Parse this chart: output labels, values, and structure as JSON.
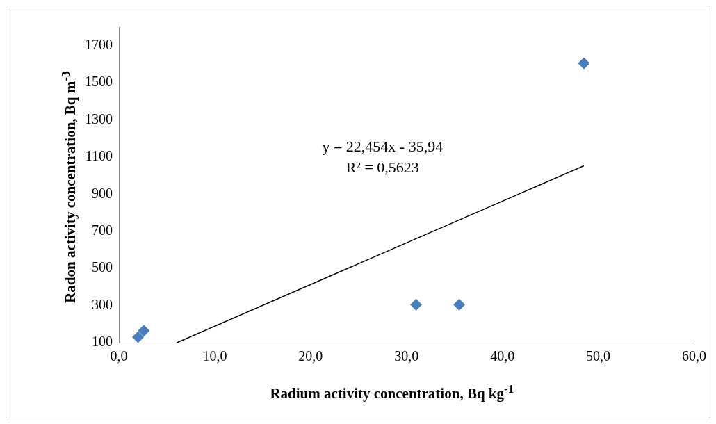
{
  "chart_data": {
    "type": "scatter",
    "xlabel": "Radium activity concentration, Bq kg$^{-1}$",
    "ylabel": "Radon activity concentration, Bq m$^{-3}$",
    "series": [
      {
        "color": "#4a7ebb",
        "marker": "diamond",
        "x": [
          2.0,
          2.6,
          31.0,
          35.5,
          48.5
        ],
        "values": [
          130,
          165,
          305,
          305,
          1605
        ]
      },
      {
        "type": "line",
        "color": "#000000",
        "marker": "none",
        "line_style": "solid",
        "x": [
          6.05,
          48.5
        ],
        "values": [
          100,
          1053
        ]
      }
    ],
    "annotations": [
      "y = 22,454x - 35,94",
      "R² = 0,5623"
    ],
    "xlim": [
      0,
      60
    ],
    "xticks": [
      {
        "value": 0,
        "label": "0,0"
      },
      {
        "value": 10,
        "label": "10,0"
      },
      {
        "value": 20,
        "label": "20,0"
      },
      {
        "value": 30,
        "label": "30,0"
      },
      {
        "value": 40,
        "label": "40,0"
      },
      {
        "value": 50,
        "label": "50,0"
      },
      {
        "value": 60,
        "label": "60,0"
      }
    ],
    "ylim": [
      100,
      1800
    ],
    "yticks": [
      100,
      300,
      500,
      700,
      900,
      1100,
      1300,
      1500,
      1700
    ],
    "grid": false,
    "legend": false
  }
}
